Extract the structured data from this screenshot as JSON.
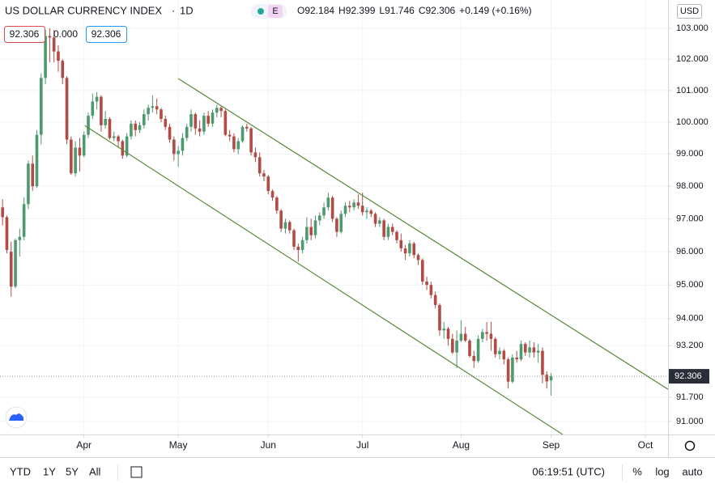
{
  "chart_data": {
    "type": "candlestick",
    "title": "US DOLLAR CURRENCY INDEX",
    "interval": "1D",
    "badge": "E",
    "ohlc_header": [
      "O92.184",
      "H92.399",
      "L91.746",
      "C92.306",
      "+0.149 (+0.16%)"
    ],
    "quote_boxes": [
      "92.306",
      "0.000",
      "92.306"
    ],
    "currency": "USD",
    "log_scale": true,
    "grid": true,
    "up_color": "#4c9a6e",
    "down_color": "#b24a45",
    "line_color": "#5b8a3a",
    "xlim": [
      -0.6,
      155.3
    ],
    "xticks": [
      {
        "value": 19,
        "label": "Apr"
      },
      {
        "value": 41,
        "label": "May"
      },
      {
        "value": 62,
        "label": "Jun"
      },
      {
        "value": 84,
        "label": "Jul"
      },
      {
        "value": 107,
        "label": "Aug"
      },
      {
        "value": 128,
        "label": "Sep"
      },
      {
        "value": 150,
        "label": "Oct"
      }
    ],
    "ylim": [
      90.63,
      103.92
    ],
    "yticks": [
      {
        "value": 103,
        "label": "103.000"
      },
      {
        "value": 102,
        "label": "102.000"
      },
      {
        "value": 101,
        "label": "101.000"
      },
      {
        "value": 100,
        "label": "100.000"
      },
      {
        "value": 99,
        "label": "99.000"
      },
      {
        "value": 98,
        "label": "98.000"
      },
      {
        "value": 97,
        "label": "97.000"
      },
      {
        "value": 96,
        "label": "96.000"
      },
      {
        "value": 95,
        "label": "95.000"
      },
      {
        "value": 94,
        "label": "94.000"
      },
      {
        "value": 93.2,
        "label": "93.200"
      },
      {
        "value": 91.7,
        "label": "91.700"
      },
      {
        "value": 91,
        "label": "91.000"
      }
    ],
    "last_price": {
      "value": 92.306,
      "label": "92.306"
    },
    "open": [
      97.35,
      97.05,
      96.0,
      94.95,
      96.35,
      96.45,
      97.45,
      98.7,
      98.0,
      99.6,
      101.4,
      102.75,
      102.7,
      102.25,
      101.95,
      101.4,
      99.45,
      98.4,
      99.2,
      98.95,
      99.6,
      100.2,
      100.65,
      100.8,
      99.9,
      100.1,
      99.5,
      99.55,
      99.4,
      98.95,
      99.55,
      99.95,
      99.75,
      99.9,
      100.25,
      100.45,
      100.5,
      100.4,
      100.1,
      99.85,
      99.45,
      99.0,
      99.1,
      99.5,
      99.85,
      100.25,
      99.8,
      99.7,
      100.2,
      99.95,
      100.3,
      100.45,
      100.35,
      99.6,
      99.55,
      99.15,
      99.4,
      99.85,
      99.8,
      99.05,
      98.9,
      98.4,
      98.3,
      97.85,
      97.65,
      97.25,
      96.7,
      96.9,
      96.65,
      96.15,
      96.05,
      96.35,
      96.75,
      96.5,
      96.95,
      97.1,
      97.35,
      97.65,
      97.0,
      96.6,
      97.15,
      97.4,
      97.35,
      97.5,
      97.4,
      97.2,
      97.25,
      97.15,
      96.85,
      96.95,
      96.45,
      96.75,
      96.6,
      96.35,
      96.1,
      95.95,
      96.25,
      95.9,
      95.75,
      95.1,
      95.0,
      94.7,
      94.4,
      93.65,
      93.7,
      93.4,
      93.0,
      93.35,
      93.55,
      93.35,
      92.9,
      92.75,
      93.4,
      93.6,
      93.55,
      93.4,
      92.95,
      93.05,
      92.8,
      92.15,
      92.85,
      92.8,
      93.25,
      93.0,
      93.15,
      93.0,
      93.05,
      92.35,
      92.184
    ],
    "high": [
      97.6,
      97.1,
      96.3,
      96.4,
      96.7,
      97.65,
      98.8,
      98.95,
      99.75,
      101.55,
      102.95,
      103.0,
      102.95,
      102.45,
      102.0,
      101.45,
      99.55,
      99.4,
      99.5,
      99.7,
      100.3,
      100.9,
      100.95,
      100.85,
      100.35,
      100.15,
      99.7,
      99.6,
      99.45,
      99.65,
      100.05,
      100.05,
      100.0,
      100.4,
      100.55,
      100.85,
      100.75,
      100.45,
      100.2,
      99.95,
      99.55,
      99.25,
      99.65,
      99.95,
      100.4,
      100.3,
      100.05,
      100.3,
      100.35,
      100.4,
      100.55,
      100.5,
      100.4,
      99.75,
      99.65,
      99.5,
      99.9,
      99.95,
      99.85,
      99.2,
      99.05,
      98.5,
      98.35,
      97.9,
      97.7,
      97.3,
      97.0,
      96.95,
      96.7,
      96.25,
      96.45,
      97.05,
      97.0,
      97.1,
      97.2,
      97.5,
      97.8,
      97.7,
      97.05,
      97.25,
      97.5,
      97.55,
      97.6,
      97.75,
      97.8,
      97.35,
      97.3,
      97.2,
      97.05,
      97.0,
      96.85,
      96.85,
      96.65,
      96.55,
      96.2,
      96.35,
      96.3,
      95.95,
      95.8,
      95.25,
      95.1,
      94.8,
      94.45,
      93.9,
      93.75,
      93.55,
      93.65,
      93.95,
      93.75,
      93.4,
      93.05,
      93.5,
      93.7,
      93.9,
      93.9,
      93.45,
      93.15,
      93.1,
      92.85,
      92.95,
      93.05,
      93.35,
      93.3,
      93.35,
      93.3,
      93.25,
      93.15,
      92.45,
      92.399
    ],
    "low": [
      96.8,
      95.95,
      94.65,
      94.9,
      95.85,
      96.35,
      97.3,
      97.85,
      97.95,
      99.3,
      101.2,
      101.9,
      101.9,
      101.6,
      101.2,
      99.3,
      98.35,
      98.3,
      98.45,
      98.9,
      99.5,
      100.1,
      100.4,
      99.7,
      99.8,
      99.45,
      99.4,
      99.2,
      98.85,
      98.9,
      99.45,
      99.55,
      99.65,
      99.8,
      100.05,
      100.3,
      100.25,
      100.0,
      99.75,
      99.35,
      98.8,
      98.6,
      98.95,
      99.4,
      99.7,
      99.6,
      99.55,
      99.6,
      99.85,
      99.85,
      100.15,
      100.15,
      99.55,
      99.4,
      99.05,
      99.0,
      99.35,
      99.7,
      98.95,
      98.75,
      98.3,
      98.15,
      97.75,
      97.55,
      97.15,
      96.6,
      96.55,
      96.55,
      96.05,
      95.7,
      95.95,
      96.25,
      96.35,
      96.4,
      96.8,
      97.0,
      97.25,
      96.9,
      96.45,
      96.55,
      97.05,
      97.2,
      97.25,
      97.3,
      97.1,
      97.0,
      97.05,
      96.75,
      96.75,
      96.35,
      96.35,
      96.5,
      96.25,
      96.0,
      95.75,
      95.85,
      95.8,
      95.6,
      95.0,
      94.85,
      94.6,
      94.3,
      93.5,
      93.4,
      93.2,
      92.95,
      92.55,
      93.3,
      93.3,
      92.85,
      92.55,
      92.7,
      93.3,
      93.35,
      93.05,
      92.85,
      92.8,
      92.65,
      91.95,
      92.1,
      92.7,
      92.75,
      92.9,
      92.85,
      92.85,
      92.7,
      92.1,
      91.95,
      91.746
    ],
    "close": [
      97.05,
      96.05,
      94.95,
      96.35,
      96.45,
      97.45,
      98.7,
      98.0,
      99.6,
      101.4,
      102.75,
      102.7,
      102.25,
      101.95,
      101.4,
      99.45,
      98.4,
      99.2,
      98.95,
      99.6,
      100.2,
      100.65,
      100.8,
      99.9,
      100.1,
      99.5,
      99.55,
      99.4,
      98.95,
      99.55,
      99.95,
      99.75,
      99.9,
      100.25,
      100.45,
      100.5,
      100.4,
      100.1,
      99.85,
      99.45,
      99.0,
      99.1,
      99.5,
      99.85,
      100.25,
      99.8,
      99.7,
      100.2,
      99.95,
      100.3,
      100.45,
      100.35,
      99.6,
      99.55,
      99.15,
      99.4,
      99.85,
      99.8,
      99.05,
      98.9,
      98.4,
      98.3,
      97.85,
      97.65,
      97.25,
      96.7,
      96.9,
      96.65,
      96.15,
      96.05,
      96.35,
      96.75,
      96.5,
      96.95,
      97.1,
      97.35,
      97.65,
      97.0,
      96.6,
      97.15,
      97.4,
      97.35,
      97.5,
      97.4,
      97.2,
      97.25,
      97.15,
      96.85,
      96.95,
      96.45,
      96.75,
      96.6,
      96.35,
      96.1,
      95.95,
      96.25,
      95.9,
      95.75,
      95.1,
      95.0,
      94.7,
      94.4,
      93.65,
      93.7,
      93.4,
      93.0,
      93.35,
      93.55,
      93.35,
      92.9,
      92.75,
      93.4,
      93.6,
      93.55,
      93.4,
      92.95,
      93.05,
      92.8,
      92.15,
      92.85,
      92.8,
      93.25,
      93.0,
      93.15,
      93.0,
      93.05,
      92.35,
      92.157,
      92.306
    ],
    "channels": [
      {
        "x": [
          41.0,
          155.3
        ],
        "y": [
          101.38,
          91.93
        ]
      },
      {
        "x": [
          19.2,
          130.7
        ],
        "y": [
          99.89,
          90.63
        ]
      }
    ],
    "range_buttons": [
      "YTD",
      "1Y",
      "5Y",
      "All"
    ],
    "clock": "06:19:51 (UTC)",
    "scale_buttons": [
      "%",
      "log",
      "auto"
    ]
  }
}
